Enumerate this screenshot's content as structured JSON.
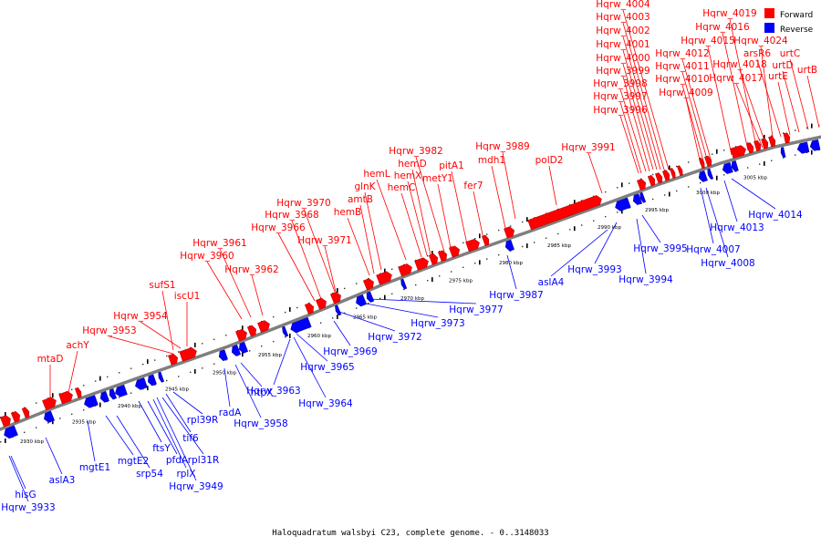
{
  "caption": "Haloquadratum walsbyi C23, complete genome. - 0..3148033",
  "legend": [
    {
      "label": "Forward",
      "color": "#ff0000"
    },
    {
      "label": "Reverse",
      "color": "#0000ff"
    }
  ],
  "colors": {
    "forward": "#ff0000",
    "reverse": "#0000ff",
    "backbone": "#7f7f7f"
  },
  "scale_labels": [
    "2930 kbp",
    "2935 kbp",
    "2940 kbp",
    "2945 kbp",
    "2950 kbp",
    "2955 kbp",
    "2960 kbp",
    "2965 kbp",
    "2970 kbp",
    "2975 kbp",
    "2980 kbp",
    "2985 kbp",
    "2990 kbp",
    "2995 kbp",
    "3000 kbp",
    "3005 kbp"
  ],
  "forward_labels": [
    "mtaD",
    "achY",
    "Hqrw_3953",
    "Hqrw_3954",
    "sufS1",
    "iscU1",
    "Hqrw_3960",
    "Hqrw_3961",
    "Hqrw_3962",
    "Hqrw_3966",
    "Hqrw_3968",
    "Hqrw_3970",
    "Hqrw_3971",
    "hemB",
    "amtB",
    "glnK",
    "hemL",
    "hemC",
    "hemX",
    "hemD",
    "Hqrw_3982",
    "metY1",
    "pitA1",
    "fer7",
    "mdh1",
    "Hqrw_3989",
    "polD2",
    "Hqrw_3991",
    "Hqrw_3996",
    "Hqrw_3997",
    "Hqrw_3998",
    "Hqrw_3999",
    "Hqrw_4000",
    "Hqrw_4001",
    "Hqrw_4002",
    "Hqrw_4003",
    "Hqrw_4004",
    "Hqrw_4009",
    "Hqrw_4010",
    "Hqrw_4011",
    "Hqrw_4012",
    "Hqrw_4015",
    "Hqrw_4016",
    "Hqrw_4019",
    "Hqrw_4017",
    "Hqrw_4018",
    "Hqrw_4024",
    "arsR6",
    "urtE",
    "urtD",
    "urtC",
    "urtB"
  ],
  "reverse_labels": [
    "Hqrw_3933",
    "hisG",
    "aslA3",
    "mgtE1",
    "mgtE2",
    "srp54",
    "ftsY",
    "pfdA",
    "rplX",
    "Hqrw_3949",
    "rpl31R",
    "tif6",
    "rpl39R",
    "radA",
    "Hqrw_3958",
    "htpX",
    "Hqrw_3963",
    "Hqrw_3964",
    "Hqrw_3965",
    "Hqrw_3969",
    "Hqrw_3972",
    "Hqrw_3973",
    "Hqrw_3977",
    "Hqrw_3987",
    "aslA4",
    "Hqrw_3993",
    "Hqrw_3994",
    "Hqrw_3995",
    "Hqrw_4007",
    "Hqrw_4008",
    "Hqrw_4013",
    "Hqrw_4014"
  ]
}
